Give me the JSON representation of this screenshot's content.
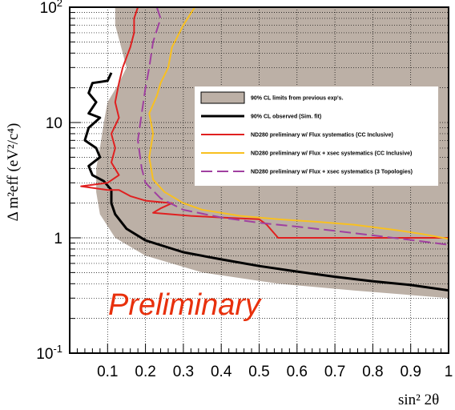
{
  "chart_data": {
    "type": "line",
    "xlabel": "sin² 2θ",
    "ylabel": "Δ m²eff (eV²/c⁴)",
    "xlim": [
      0,
      1
    ],
    "ylim": [
      0.1,
      100
    ],
    "y_scale": "log",
    "grid": "dotted",
    "legend_placement": "center-right",
    "annotation": "Preliminary",
    "x_ticks": [
      "0.1",
      "0.2",
      "0.3",
      "0.4",
      "0.5",
      "0.6",
      "0.7",
      "0.8",
      "0.9",
      "1"
    ],
    "y_ticks": [
      {
        "base": "10",
        "exp": "-1",
        "value": 0.1
      },
      {
        "base": "1",
        "exp": "",
        "value": 1
      },
      {
        "base": "10",
        "exp": "",
        "value": 10
      },
      {
        "base": "10",
        "exp": "2",
        "value": 100
      }
    ],
    "region": {
      "name": "90% CL limits from previous exp's.",
      "color": "#bcb0a6",
      "left_boundary": [
        [
          0.12,
          100
        ],
        [
          0.12,
          70
        ],
        [
          0.14,
          40
        ],
        [
          0.15,
          30
        ],
        [
          0.13,
          22
        ],
        [
          0.1,
          15
        ],
        [
          0.09,
          10
        ],
        [
          0.08,
          6
        ],
        [
          0.07,
          4
        ],
        [
          0.07,
          2.5
        ],
        [
          0.08,
          1.6
        ],
        [
          0.12,
          1.0
        ],
        [
          0.2,
          0.7
        ],
        [
          0.35,
          0.5
        ],
        [
          0.55,
          0.4
        ],
        [
          0.75,
          0.35
        ],
        [
          1.0,
          0.3
        ]
      ]
    },
    "series": [
      {
        "name": "90% CL observed (Sim. fit)",
        "color": "#000000",
        "width": 3,
        "points": [
          [
            0.11,
            27
          ],
          [
            0.1,
            23
          ],
          [
            0.06,
            22
          ],
          [
            0.05,
            18
          ],
          [
            0.07,
            15
          ],
          [
            0.05,
            12
          ],
          [
            0.08,
            11
          ],
          [
            0.05,
            9
          ],
          [
            0.04,
            7
          ],
          [
            0.07,
            6
          ],
          [
            0.08,
            5
          ],
          [
            0.05,
            4.2
          ],
          [
            0.06,
            3.5
          ],
          [
            0.09,
            3.1
          ],
          [
            0.11,
            2.6
          ],
          [
            0.11,
            2.0
          ],
          [
            0.12,
            1.6
          ],
          [
            0.15,
            1.2
          ],
          [
            0.2,
            0.95
          ],
          [
            0.3,
            0.75
          ],
          [
            0.4,
            0.65
          ],
          [
            0.5,
            0.57
          ],
          [
            0.6,
            0.51
          ],
          [
            0.7,
            0.46
          ],
          [
            0.8,
            0.42
          ],
          [
            0.9,
            0.39
          ],
          [
            1.0,
            0.35
          ]
        ]
      },
      {
        "name": "ND280 preliminary w/ Flux systematics (CC Inclusive)",
        "color": "#e02020",
        "width": 2,
        "points": [
          [
            0.18,
            100
          ],
          [
            0.17,
            80
          ],
          [
            0.17,
            60
          ],
          [
            0.16,
            45
          ],
          [
            0.14,
            30
          ],
          [
            0.13,
            22
          ],
          [
            0.12,
            15
          ],
          [
            0.13,
            11
          ],
          [
            0.11,
            8
          ],
          [
            0.12,
            6
          ],
          [
            0.11,
            4.5
          ],
          [
            0.13,
            3.5
          ],
          [
            0.1,
            3.0
          ],
          [
            0.03,
            2.8
          ],
          [
            0.1,
            2.6
          ],
          [
            0.13,
            2.6
          ],
          [
            0.16,
            2.3
          ],
          [
            0.2,
            2.1
          ],
          [
            0.27,
            2.0
          ],
          [
            0.24,
            1.8
          ],
          [
            0.22,
            1.65
          ],
          [
            0.32,
            1.55
          ],
          [
            0.4,
            1.5
          ],
          [
            0.5,
            1.45
          ],
          [
            0.52,
            1.3
          ],
          [
            0.55,
            1.0
          ],
          [
            0.7,
            1.0
          ],
          [
            1.0,
            1.0
          ]
        ]
      },
      {
        "name": "ND280 preliminary w/ Flux + xsec systematics (CC Inclusive)",
        "color": "#f8c020",
        "width": 2,
        "points": [
          [
            0.33,
            100
          ],
          [
            0.3,
            70
          ],
          [
            0.27,
            45
          ],
          [
            0.26,
            30
          ],
          [
            0.24,
            22
          ],
          [
            0.23,
            17
          ],
          [
            0.21,
            12
          ],
          [
            0.22,
            8
          ],
          [
            0.21,
            5
          ],
          [
            0.22,
            3.2
          ],
          [
            0.25,
            2.5
          ],
          [
            0.3,
            2.0
          ],
          [
            0.35,
            1.75
          ],
          [
            0.45,
            1.55
          ],
          [
            0.55,
            1.45
          ],
          [
            0.65,
            1.38
          ],
          [
            0.75,
            1.3
          ],
          [
            0.85,
            1.18
          ],
          [
            0.93,
            1.08
          ],
          [
            1.0,
            0.98
          ]
        ]
      },
      {
        "name": "ND280 preliminary w/ Flux + xsec systematics (3 Topologies)",
        "color": "#a040a0",
        "width": 2,
        "dash": true,
        "points": [
          [
            0.23,
            100
          ],
          [
            0.24,
            80
          ],
          [
            0.22,
            50
          ],
          [
            0.21,
            30
          ],
          [
            0.2,
            20
          ],
          [
            0.19,
            12
          ],
          [
            0.18,
            7
          ],
          [
            0.19,
            4
          ],
          [
            0.2,
            3
          ],
          [
            0.24,
            2.2
          ],
          [
            0.3,
            1.75
          ],
          [
            0.4,
            1.5
          ],
          [
            0.5,
            1.35
          ],
          [
            0.6,
            1.25
          ],
          [
            0.7,
            1.15
          ],
          [
            0.8,
            1.05
          ],
          [
            0.9,
            0.96
          ],
          [
            1.0,
            0.87
          ]
        ]
      }
    ]
  }
}
